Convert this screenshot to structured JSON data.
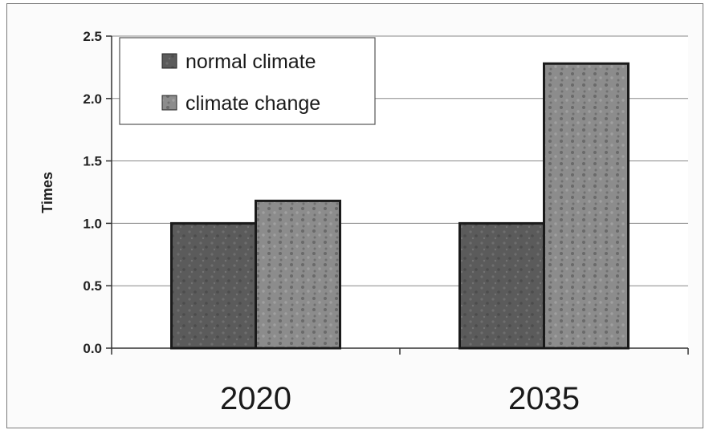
{
  "chart_data": {
    "type": "bar",
    "title": "",
    "xlabel": "",
    "ylabel": "Times",
    "categories": [
      "2020",
      "2035"
    ],
    "series": [
      {
        "name": "normal climate",
        "values": [
          1.0,
          1.0
        ],
        "color": "#5a5a5a"
      },
      {
        "name": "climate change",
        "values": [
          1.18,
          2.28
        ],
        "color": "#8a8a8a"
      }
    ],
    "ylim": [
      0,
      2.5
    ],
    "yticks": [
      "0.0",
      "0.5",
      "1.0",
      "1.5",
      "2.0",
      "2.5"
    ],
    "grid": true,
    "legend_position": "top-left"
  }
}
